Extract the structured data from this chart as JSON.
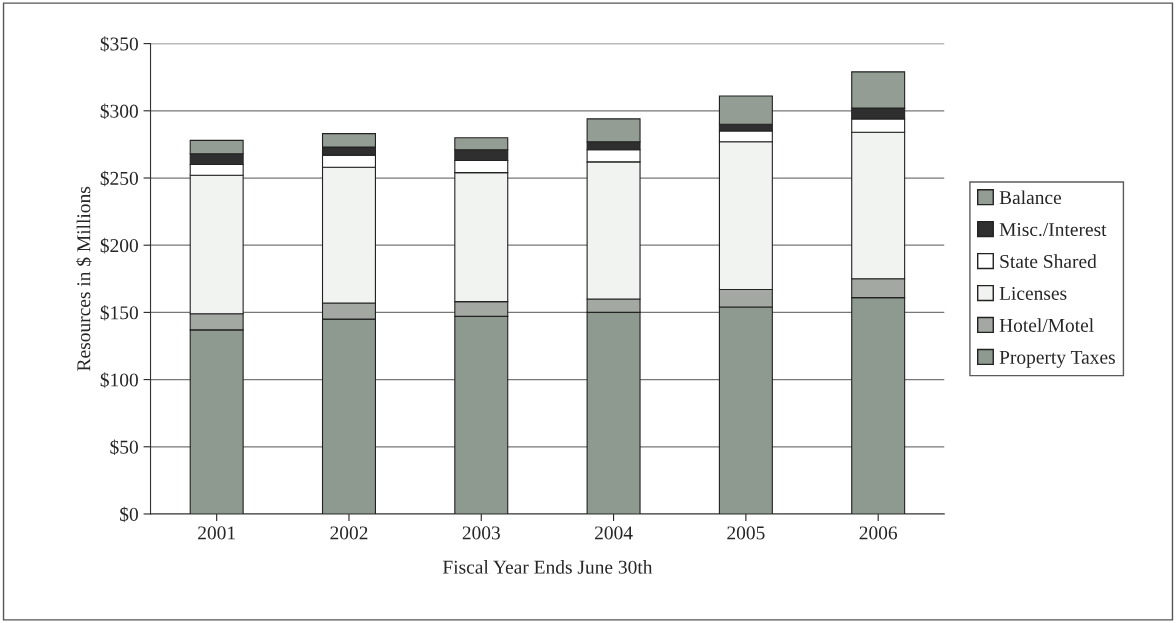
{
  "chart_data": {
    "type": "bar",
    "stacked": true,
    "xlabel": "Fiscal Year Ends June 30th",
    "ylabel": "Resources in $ Millions",
    "categories": [
      "2001",
      "2002",
      "2003",
      "2004",
      "2005",
      "2006"
    ],
    "series": [
      {
        "name": "Property Taxes",
        "color": "#8e9a8f",
        "values": [
          137,
          145,
          147,
          150,
          154,
          161
        ]
      },
      {
        "name": "Hotel/Motel",
        "color": "#a3a8a3",
        "values": [
          12,
          12,
          11,
          10,
          13,
          14
        ]
      },
      {
        "name": "Licenses",
        "color": "#f1f3f1",
        "values": [
          103,
          101,
          96,
          102,
          110,
          109
        ]
      },
      {
        "name": "State Shared",
        "color": "#ffffff",
        "values": [
          8,
          9,
          9,
          9,
          8,
          10
        ]
      },
      {
        "name": "Misc./Interest",
        "color": "#2f2f2f",
        "values": [
          8,
          6,
          8,
          6,
          5,
          8
        ]
      },
      {
        "name": "Balance",
        "color": "#939d94",
        "values": [
          10,
          10,
          9,
          17,
          21,
          27
        ]
      }
    ],
    "ylim": [
      0,
      350
    ],
    "yticks": [
      {
        "value": 0,
        "label": "$0"
      },
      {
        "value": 50,
        "label": "$50"
      },
      {
        "value": 100,
        "label": "$100"
      },
      {
        "value": 150,
        "label": "$150"
      },
      {
        "value": 200,
        "label": "$200"
      },
      {
        "value": 250,
        "label": "$250"
      },
      {
        "value": 300,
        "label": "$300"
      },
      {
        "value": 350,
        "label": "$350"
      }
    ],
    "grid": "y",
    "legend": "right"
  }
}
